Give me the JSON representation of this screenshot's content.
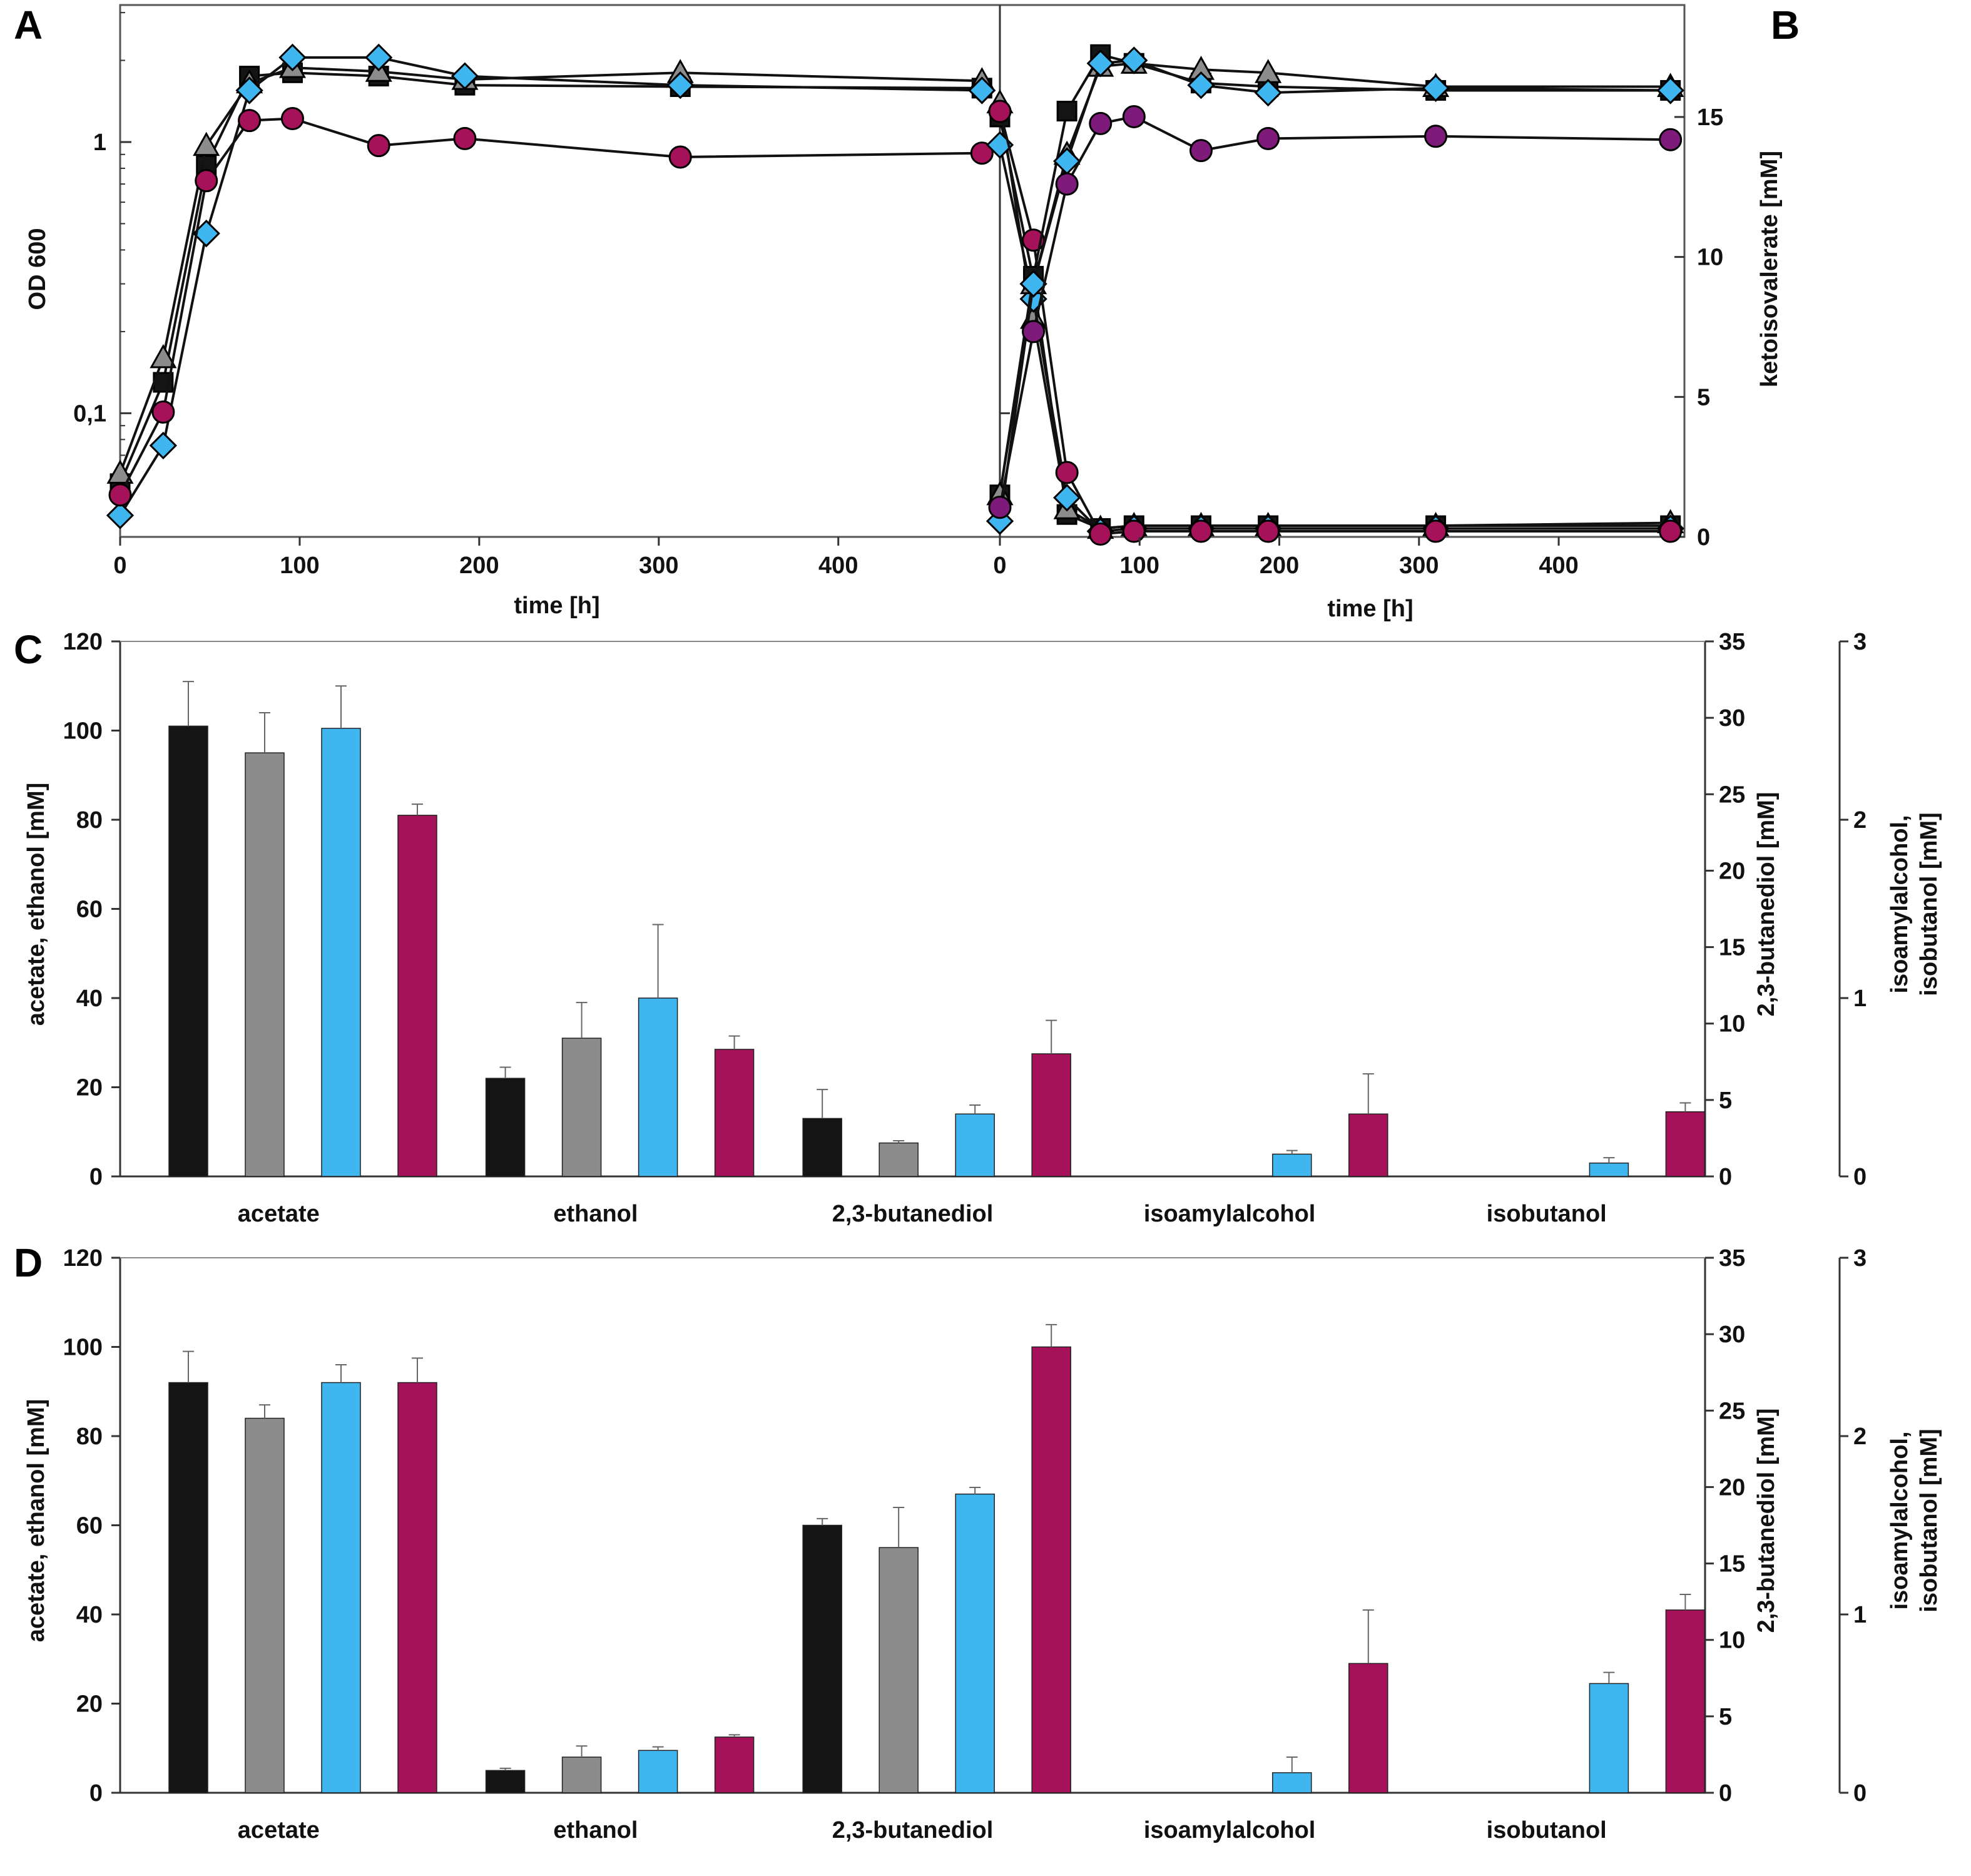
{
  "panels": {
    "A": "A",
    "B": "B",
    "C": "C",
    "D": "D"
  },
  "colors": {
    "black": "#141414",
    "gray": "#8c8c8c",
    "blue": "#3fb6f0",
    "magenta": "#a5125a",
    "purple": "#7e1a7a"
  },
  "chart_data": [
    {
      "id": "A",
      "type": "line",
      "xlabel": "time [h]",
      "ylabel": "OD 600",
      "yscale": "log",
      "xlim": [
        0,
        490
      ],
      "ylim": [
        0.035,
        3.2
      ],
      "xticks": [
        {
          "v": 0,
          "label": "0"
        },
        {
          "v": 100,
          "label": "100"
        },
        {
          "v": 200,
          "label": "200"
        },
        {
          "v": 300,
          "label": "300"
        },
        {
          "v": 400,
          "label": "400"
        }
      ],
      "yticks": [
        {
          "v": 0.1,
          "label": "0,1"
        },
        {
          "v": 1,
          "label": "1"
        }
      ],
      "series": [
        {
          "name": "black",
          "marker": "square",
          "color": "#141414",
          "x": [
            0,
            24,
            48,
            72,
            96,
            144,
            192,
            312,
            480
          ],
          "y": [
            0.055,
            0.13,
            0.82,
            1.75,
            1.8,
            1.75,
            1.62,
            1.6,
            1.58
          ]
        },
        {
          "name": "gray",
          "marker": "triangle",
          "color": "#8c8c8c",
          "x": [
            0,
            24,
            48,
            72,
            96,
            144,
            192,
            312,
            480
          ],
          "y": [
            0.06,
            0.16,
            0.97,
            1.65,
            1.88,
            1.82,
            1.7,
            1.8,
            1.68
          ]
        },
        {
          "name": "blue",
          "marker": "diamond",
          "color": "#3fb6f0",
          "x": [
            0,
            24,
            48,
            72,
            96,
            144,
            192,
            312,
            480
          ],
          "y": [
            0.042,
            0.076,
            0.46,
            1.55,
            2.05,
            2.05,
            1.75,
            1.62,
            1.55
          ]
        },
        {
          "name": "magenta",
          "marker": "circle",
          "color": "#a5125a",
          "x": [
            0,
            24,
            48,
            72,
            96,
            144,
            192,
            312,
            480
          ],
          "y": [
            0.05,
            0.101,
            0.72,
            1.2,
            1.22,
            0.97,
            1.03,
            0.88,
            0.91
          ]
        }
      ]
    },
    {
      "id": "B",
      "type": "line",
      "xlabel": "time [h]",
      "ylabel": "ketoisovalerate [mM]",
      "yscale": "linear",
      "xlim": [
        0,
        490
      ],
      "ylim": [
        0,
        19
      ],
      "note": "left log axis shares OD600 scale with panel A (ticks unlabeled)",
      "xticks": [
        {
          "v": 0,
          "label": "0"
        },
        {
          "v": 100,
          "label": "100"
        },
        {
          "v": 200,
          "label": "200"
        },
        {
          "v": 300,
          "label": "300"
        },
        {
          "v": 400,
          "label": "400"
        }
      ],
      "yticks": [
        {
          "v": 0,
          "label": "0"
        },
        {
          "v": 5,
          "label": "5"
        },
        {
          "v": 10,
          "label": "10"
        },
        {
          "v": 15,
          "label": "15"
        }
      ],
      "od_series": [
        {
          "name": "black",
          "marker": "square",
          "color": "#141414",
          "x": [
            0,
            24,
            48,
            72,
            96,
            144,
            192,
            312,
            480
          ],
          "y": [
            0.05,
            0.32,
            1.3,
            2.1,
            1.95,
            1.65,
            1.6,
            1.55,
            1.55
          ]
        },
        {
          "name": "gray",
          "marker": "triangle",
          "color": "#8c8c8c",
          "x": [
            0,
            24,
            48,
            72,
            96,
            144,
            192,
            312,
            480
          ],
          "y": [
            0.05,
            0.3,
            0.9,
            1.9,
            1.95,
            1.85,
            1.8,
            1.6,
            1.6
          ]
        },
        {
          "name": "blue",
          "marker": "diamond",
          "color": "#3fb6f0",
          "x": [
            0,
            24,
            48,
            72,
            96,
            144,
            192,
            312,
            480
          ],
          "y": [
            0.04,
            0.3,
            0.85,
            1.95,
            2.0,
            1.62,
            1.52,
            1.58,
            1.55
          ]
        },
        {
          "name": "purple",
          "marker": "circle",
          "color": "#7e1a7a",
          "x": [
            0,
            24,
            48,
            72,
            96,
            144,
            192,
            312,
            480
          ],
          "y": [
            0.045,
            0.2,
            0.7,
            1.17,
            1.24,
            0.93,
            1.03,
            1.05,
            1.02
          ]
        }
      ],
      "kiv_series": [
        {
          "name": "black",
          "marker": "square",
          "color": "#141414",
          "x": [
            0,
            24,
            48,
            72,
            96,
            144,
            192,
            312,
            480
          ],
          "y": [
            15.0,
            9.2,
            0.8,
            0.3,
            0.4,
            0.4,
            0.4,
            0.4,
            0.4
          ]
        },
        {
          "name": "gray",
          "marker": "triangle",
          "color": "#8c8c8c",
          "x": [
            0,
            24,
            48,
            72,
            96,
            144,
            192,
            312,
            480
          ],
          "y": [
            15.5,
            7.8,
            1.0,
            0.3,
            0.4,
            0.4,
            0.4,
            0.4,
            0.5
          ]
        },
        {
          "name": "blue",
          "marker": "diamond",
          "color": "#3fb6f0",
          "x": [
            0,
            24,
            48,
            72,
            96,
            144,
            192,
            312,
            480
          ],
          "y": [
            14.0,
            8.5,
            1.4,
            0.2,
            0.3,
            0.3,
            0.3,
            0.3,
            0.3
          ]
        },
        {
          "name": "magenta",
          "marker": "circle",
          "color": "#a5125a",
          "x": [
            0,
            24,
            48,
            72,
            96,
            144,
            192,
            312,
            480
          ],
          "y": [
            15.2,
            10.6,
            2.3,
            0.1,
            0.2,
            0.2,
            0.2,
            0.2,
            0.2
          ]
        }
      ]
    },
    {
      "id": "C",
      "type": "bar",
      "categories": [
        "acetate",
        "ethanol",
        "2,3-butanediol",
        "isoamylalcohol",
        "isobutanol"
      ],
      "ylabel": "acetate, ethanol [mM]",
      "y2label": "2,3-butanediol [mM]",
      "y3label_lines": [
        "isoamylalcohol,",
        "isobutanol [mM]"
      ],
      "ylim": [
        0,
        120
      ],
      "y2lim": [
        0,
        35
      ],
      "y3lim": [
        0,
        3
      ],
      "yticks": [
        "0",
        "20",
        "40",
        "60",
        "80",
        "100",
        "120"
      ],
      "y2ticks": [
        "0",
        "5",
        "10",
        "15",
        "20",
        "25",
        "30",
        "35"
      ],
      "y3ticks": [
        "0",
        "1",
        "2",
        "3"
      ],
      "series_colors": [
        "#141414",
        "#8c8c8c",
        "#3fb6f0",
        "#a5125a"
      ],
      "values_left_axis": [
        [
          101,
          95,
          100.5,
          81
        ],
        [
          22,
          31,
          40,
          28.5
        ],
        [
          13,
          7.5,
          14,
          27.5
        ],
        [
          0,
          0,
          5,
          14
        ],
        [
          0,
          0,
          3,
          14.5
        ]
      ],
      "errors_left_axis": [
        [
          10,
          9,
          9.5,
          2.5
        ],
        [
          2.5,
          8,
          16.5,
          3
        ],
        [
          6.5,
          0.5,
          2,
          7.5
        ],
        [
          0,
          0,
          0.8,
          9
        ],
        [
          0,
          0,
          1.2,
          2
        ]
      ]
    },
    {
      "id": "D",
      "type": "bar",
      "categories": [
        "acetate",
        "ethanol",
        "2,3-butanediol",
        "isoamylalcohol",
        "isobutanol"
      ],
      "ylabel": "acetate, ethanol [mM]",
      "y2label": "2,3-butanediol [mM]",
      "y3label_lines": [
        "isoamylalcohol,",
        "isobutanol [mM]"
      ],
      "ylim": [
        0,
        120
      ],
      "y2lim": [
        0,
        35
      ],
      "y3lim": [
        0,
        3
      ],
      "yticks": [
        "0",
        "20",
        "40",
        "60",
        "80",
        "100",
        "120"
      ],
      "y2ticks": [
        "0",
        "5",
        "10",
        "15",
        "20",
        "25",
        "30",
        "35"
      ],
      "y3ticks": [
        "0",
        "1",
        "2",
        "3"
      ],
      "series_colors": [
        "#141414",
        "#8c8c8c",
        "#3fb6f0",
        "#a5125a"
      ],
      "values_left_axis": [
        [
          92,
          84,
          92,
          92
        ],
        [
          5,
          8,
          9.5,
          12.5
        ],
        [
          60,
          55,
          67,
          100
        ],
        [
          0,
          0,
          4.5,
          29
        ],
        [
          0,
          0,
          24.5,
          41
        ]
      ],
      "errors_left_axis": [
        [
          7,
          3,
          4,
          5.5
        ],
        [
          0.5,
          2.5,
          0.8,
          0.5
        ],
        [
          1.5,
          9,
          1.5,
          5
        ],
        [
          0,
          0,
          3.5,
          12
        ],
        [
          0,
          0,
          2.5,
          3.5
        ]
      ]
    }
  ]
}
